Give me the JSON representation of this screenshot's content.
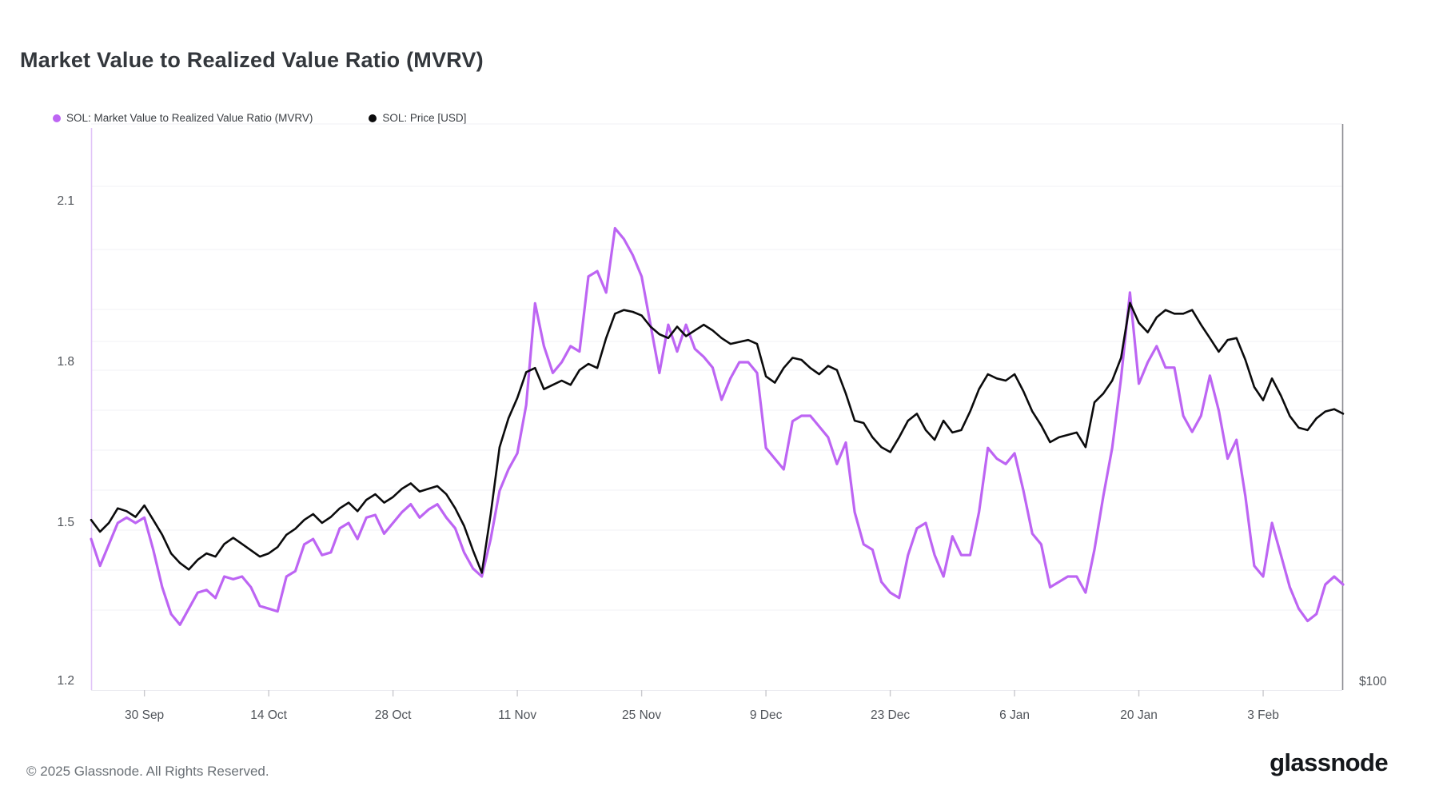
{
  "title": "Market Value to Realized Value Ratio (MVRV)",
  "footer": {
    "copyright": "© 2025 Glassnode. All Rights Reserved.",
    "brand": "glassnode"
  },
  "y_axis_right_label": "$100",
  "chart_data": {
    "type": "line",
    "title": "Market Value to Realized Value Ratio (MVRV)",
    "legend_position": "top-left",
    "grid": "horizontal-faint",
    "x_tick_labels": [
      "30 Sep",
      "14 Oct",
      "28 Oct",
      "11 Nov",
      "25 Nov",
      "9 Dec",
      "23 Dec",
      "6 Jan",
      "20 Jan",
      "3 Feb"
    ],
    "x_tick_indices": [
      6,
      20,
      34,
      48,
      62,
      76,
      90,
      104,
      118,
      132
    ],
    "y_axis_left": {
      "scale": "linear",
      "ticks": [
        "2.1",
        "1.8",
        "1.5",
        "1.2"
      ],
      "tick_values": [
        2.1,
        1.8,
        1.5,
        1.2
      ],
      "approx_range": [
        1.18,
        2.23
      ]
    },
    "y_axis_right": {
      "scale": "log",
      "ticks": [
        "$100"
      ],
      "tick_values": [
        100
      ]
    },
    "x": [
      "24 Sep",
      "25 Sep",
      "26 Sep",
      "27 Sep",
      "28 Sep",
      "29 Sep",
      "30 Sep",
      "1 Oct",
      "2 Oct",
      "3 Oct",
      "4 Oct",
      "5 Oct",
      "6 Oct",
      "7 Oct",
      "8 Oct",
      "9 Oct",
      "10 Oct",
      "11 Oct",
      "12 Oct",
      "13 Oct",
      "14 Oct",
      "15 Oct",
      "16 Oct",
      "17 Oct",
      "18 Oct",
      "19 Oct",
      "20 Oct",
      "21 Oct",
      "22 Oct",
      "23 Oct",
      "24 Oct",
      "25 Oct",
      "26 Oct",
      "27 Oct",
      "28 Oct",
      "29 Oct",
      "30 Oct",
      "31 Oct",
      "1 Nov",
      "2 Nov",
      "3 Nov",
      "4 Nov",
      "5 Nov",
      "6 Nov",
      "7 Nov",
      "8 Nov",
      "9 Nov",
      "10 Nov",
      "11 Nov",
      "12 Nov",
      "13 Nov",
      "14 Nov",
      "15 Nov",
      "16 Nov",
      "17 Nov",
      "18 Nov",
      "19 Nov",
      "20 Nov",
      "21 Nov",
      "22 Nov",
      "23 Nov",
      "24 Nov",
      "25 Nov",
      "26 Nov",
      "27 Nov",
      "28 Nov",
      "29 Nov",
      "30 Nov",
      "1 Dec",
      "2 Dec",
      "3 Dec",
      "4 Dec",
      "5 Dec",
      "6 Dec",
      "7 Dec",
      "8 Dec",
      "9 Dec",
      "10 Dec",
      "11 Dec",
      "12 Dec",
      "13 Dec",
      "14 Dec",
      "15 Dec",
      "16 Dec",
      "17 Dec",
      "18 Dec",
      "19 Dec",
      "20 Dec",
      "21 Dec",
      "22 Dec",
      "23 Dec",
      "24 Dec",
      "25 Dec",
      "26 Dec",
      "27 Dec",
      "28 Dec",
      "29 Dec",
      "30 Dec",
      "31 Dec",
      "1 Jan",
      "2 Jan",
      "3 Jan",
      "4 Jan",
      "5 Jan",
      "6 Jan",
      "7 Jan",
      "8 Jan",
      "9 Jan",
      "10 Jan",
      "11 Jan",
      "12 Jan",
      "13 Jan",
      "14 Jan",
      "15 Jan",
      "16 Jan",
      "17 Jan",
      "18 Jan",
      "19 Jan",
      "20 Jan",
      "21 Jan",
      "22 Jan",
      "23 Jan",
      "24 Jan",
      "25 Jan",
      "26 Jan",
      "27 Jan",
      "28 Jan",
      "29 Jan",
      "30 Jan",
      "31 Jan",
      "1 Feb",
      "2 Feb",
      "3 Feb",
      "4 Feb",
      "5 Feb",
      "6 Feb",
      "7 Feb",
      "8 Feb",
      "9 Feb",
      "10 Feb",
      "11 Feb",
      "12 Feb"
    ],
    "series": [
      {
        "name": "SOL: Market Value to Realized Value Ratio (MVRV)",
        "color": "#bd65f3",
        "axis": "left",
        "values": [
          1.47,
          1.42,
          1.46,
          1.5,
          1.51,
          1.5,
          1.51,
          1.45,
          1.38,
          1.33,
          1.31,
          1.34,
          1.37,
          1.375,
          1.36,
          1.4,
          1.395,
          1.4,
          1.38,
          1.345,
          1.34,
          1.335,
          1.4,
          1.41,
          1.46,
          1.47,
          1.44,
          1.445,
          1.49,
          1.5,
          1.47,
          1.51,
          1.515,
          1.48,
          1.5,
          1.52,
          1.535,
          1.51,
          1.525,
          1.535,
          1.51,
          1.49,
          1.445,
          1.415,
          1.4,
          1.47,
          1.56,
          1.6,
          1.63,
          1.72,
          1.91,
          1.83,
          1.78,
          1.8,
          1.83,
          1.82,
          1.96,
          1.97,
          1.93,
          2.05,
          2.03,
          2.0,
          1.96,
          1.87,
          1.78,
          1.87,
          1.82,
          1.87,
          1.825,
          1.81,
          1.79,
          1.73,
          1.77,
          1.8,
          1.8,
          1.78,
          1.64,
          1.62,
          1.6,
          1.69,
          1.7,
          1.7,
          1.68,
          1.66,
          1.61,
          1.65,
          1.52,
          1.46,
          1.45,
          1.39,
          1.37,
          1.36,
          1.44,
          1.49,
          1.5,
          1.44,
          1.4,
          1.475,
          1.44,
          1.44,
          1.52,
          1.64,
          1.62,
          1.61,
          1.63,
          1.56,
          1.48,
          1.46,
          1.38,
          1.39,
          1.4,
          1.4,
          1.37,
          1.45,
          1.55,
          1.64,
          1.77,
          1.93,
          1.76,
          1.8,
          1.83,
          1.79,
          1.79,
          1.7,
          1.67,
          1.7,
          1.775,
          1.71,
          1.62,
          1.655,
          1.55,
          1.42,
          1.4,
          1.5,
          1.44,
          1.38,
          1.34,
          1.317,
          1.33,
          1.385,
          1.4,
          1.385
        ]
      },
      {
        "name": "SOL: Price [USD]",
        "color": "#0b0b0c",
        "axis": "right",
        "values": [
          148,
          144,
          147,
          152,
          151,
          149,
          153,
          148,
          143,
          137,
          134,
          132,
          135,
          137,
          136,
          140,
          142,
          140,
          138,
          136,
          137,
          139,
          143,
          145,
          148,
          150,
          147,
          149,
          152,
          154,
          151,
          155,
          157,
          154,
          156,
          159,
          161,
          158,
          159,
          160,
          157,
          152,
          146,
          138,
          131,
          150,
          175,
          187,
          196,
          208,
          210,
          200,
          202,
          204,
          202,
          209,
          212,
          210,
          225,
          238,
          240,
          239,
          237,
          231,
          227,
          225,
          231,
          226,
          229,
          232,
          229,
          225,
          222,
          223,
          224,
          222,
          206,
          203,
          210,
          215,
          214,
          210,
          207,
          211,
          209,
          198,
          186,
          185,
          179,
          175,
          173,
          179,
          186,
          189,
          182,
          178,
          186,
          181,
          182,
          190,
          200,
          207,
          205,
          204,
          207,
          199,
          190,
          184,
          177,
          179,
          180,
          181,
          175,
          194,
          198,
          204,
          215,
          244,
          233,
          228,
          236,
          240,
          238,
          238,
          240,
          232,
          225,
          218,
          224,
          225,
          214,
          201,
          195,
          205,
          197,
          188,
          183,
          182,
          187,
          190,
          191,
          189
        ]
      }
    ]
  }
}
